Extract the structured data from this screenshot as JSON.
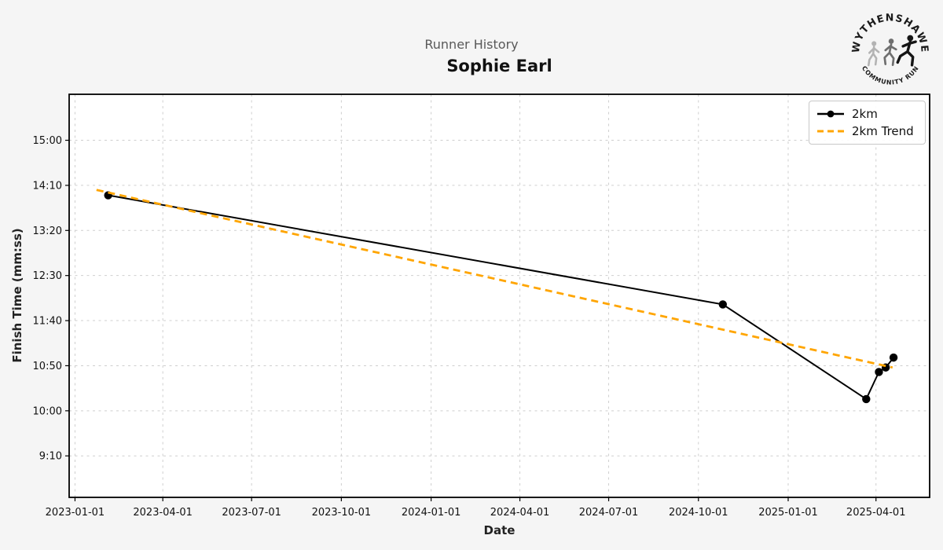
{
  "header": {
    "suptitle": "Runner History",
    "runner_name": "Sophie Earl"
  },
  "logo": {
    "top_text": "WYTHENSHAWE",
    "bottom_text": "COMMUNITY RUN"
  },
  "colors": {
    "figure_background": "#f5f5f5",
    "plot_background": "#ffffff",
    "grid": "#cfcfcf",
    "axis": "#000000",
    "series_line": "#000000",
    "trend_line": "#ffa500",
    "suptitle_text": "#595959",
    "title_text": "#111111"
  },
  "chart_data": {
    "type": "line",
    "title": "Runner History",
    "subtitle": "Sophie Earl",
    "xlabel": "Date",
    "ylabel": "Finish Time (mm:ss)",
    "grid": true,
    "legend_position": "upper right",
    "x_tick_labels": [
      "2023-01-01",
      "2023-04-01",
      "2023-07-01",
      "2023-10-01",
      "2024-01-01",
      "2024-04-01",
      "2024-07-01",
      "2024-10-01",
      "2025-01-01",
      "2025-04-01"
    ],
    "y_tick_labels": [
      "15:00",
      "14:10",
      "13:20",
      "12:30",
      "11:40",
      "10:50",
      "10:00",
      "9:10"
    ],
    "y_tick_seconds": [
      900,
      850,
      800,
      750,
      700,
      650,
      600,
      550
    ],
    "x_axis_range_days": [
      -6,
      876
    ],
    "y_axis_range_seconds": [
      504,
      951
    ],
    "series": [
      {
        "name": "2km",
        "color": "#000000",
        "style": "solid",
        "marker": "circle",
        "points": [
          {
            "date": "2023-02-04",
            "time": "13:59",
            "seconds": 839
          },
          {
            "date": "2024-10-26",
            "time": "11:58",
            "seconds": 718
          },
          {
            "date": "2025-03-22",
            "time": "10:13",
            "seconds": 613
          },
          {
            "date": "2025-04-04",
            "time": "10:43",
            "seconds": 643
          },
          {
            "date": "2025-04-11",
            "time": "10:48",
            "seconds": 648
          },
          {
            "date": "2025-04-19",
            "time": "10:59",
            "seconds": 659
          }
        ]
      },
      {
        "name": "2km Trend",
        "color": "#ffa500",
        "style": "dashed",
        "marker": "none",
        "points": [
          {
            "date": "2023-01-23",
            "time": "14:05",
            "seconds": 845
          },
          {
            "date": "2025-04-18",
            "time": "10:48",
            "seconds": 648
          }
        ]
      }
    ]
  }
}
